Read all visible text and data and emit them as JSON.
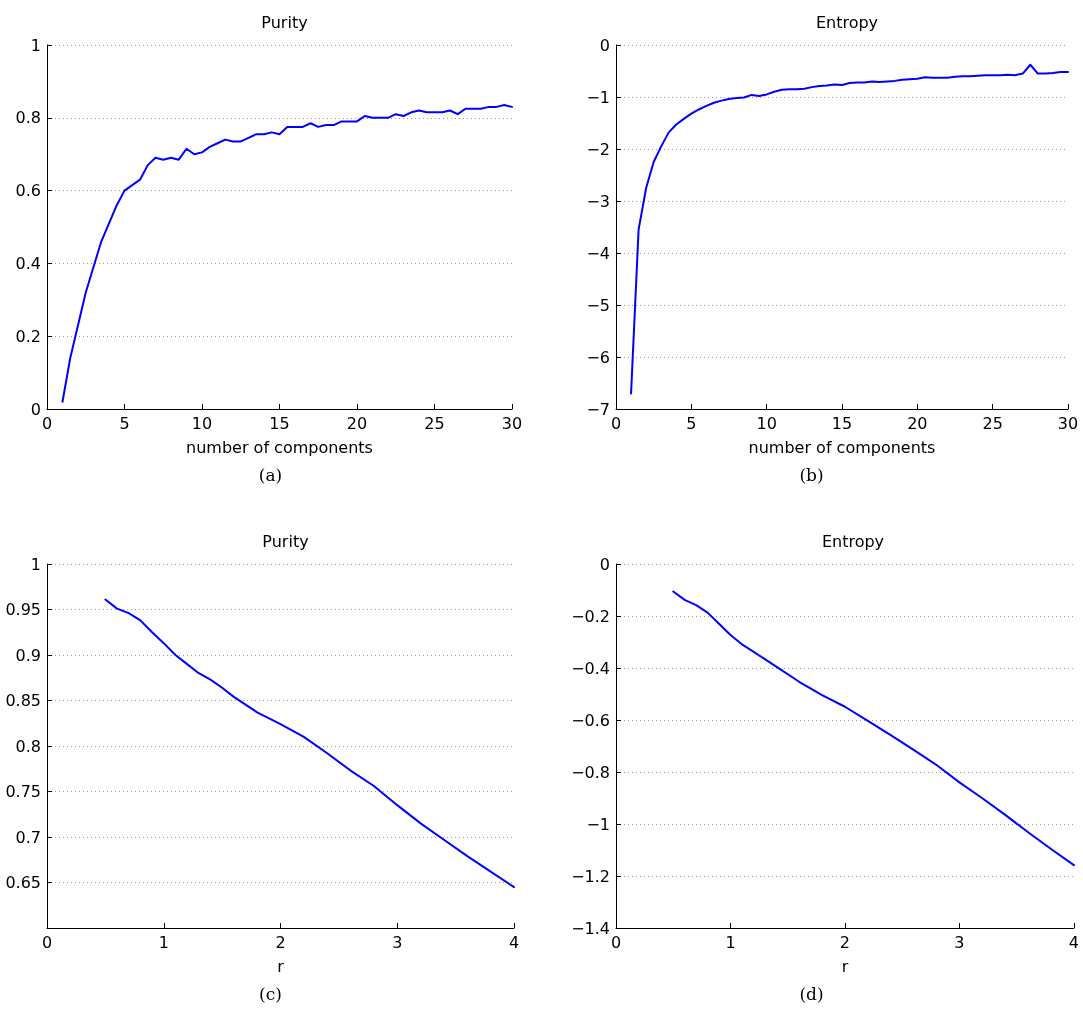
{
  "chart_data": [
    {
      "type": "line",
      "title": "Purity",
      "xlabel": "number of components",
      "annotations": [
        "(a)"
      ],
      "xlim": [
        0,
        30
      ],
      "xticks": [
        0,
        5,
        10,
        15,
        20,
        25,
        30
      ],
      "ylim": [
        0,
        1
      ],
      "yticks": [
        0,
        0.2,
        0.4,
        0.6,
        0.8,
        1
      ],
      "grid": "y",
      "marker": "none",
      "line_style": "solid",
      "x": [
        1,
        1.5,
        2,
        2.5,
        3,
        3.5,
        4,
        4.5,
        5,
        5.5,
        6,
        6.5,
        7,
        7.5,
        8,
        8.5,
        9,
        9.5,
        10,
        10.5,
        11,
        11.5,
        12,
        12.5,
        13,
        13.5,
        14,
        14.5,
        15,
        15.5,
        16,
        16.5,
        17,
        17.5,
        18,
        18.5,
        19,
        19.5,
        20,
        20.5,
        21,
        21.5,
        22,
        22.5,
        23,
        23.5,
        24,
        24.5,
        25,
        25.5,
        26,
        26.5,
        27,
        27.5,
        28,
        28.5,
        29,
        29.5,
        30
      ],
      "series": [
        {
          "color": "#0000ff",
          "values": [
            0.02,
            0.14,
            0.23,
            0.32,
            0.39,
            0.46,
            0.51,
            0.56,
            0.6,
            0.615,
            0.63,
            0.67,
            0.69,
            0.685,
            0.69,
            0.685,
            0.715,
            0.7,
            0.705,
            0.72,
            0.73,
            0.74,
            0.735,
            0.735,
            0.745,
            0.755,
            0.755,
            0.76,
            0.755,
            0.775,
            0.775,
            0.775,
            0.785,
            0.775,
            0.78,
            0.78,
            0.79,
            0.79,
            0.79,
            0.805,
            0.8,
            0.8,
            0.8,
            0.81,
            0.805,
            0.815,
            0.82,
            0.815,
            0.815,
            0.815,
            0.82,
            0.81,
            0.825,
            0.825,
            0.825,
            0.83,
            0.83,
            0.835,
            0.83
          ]
        }
      ]
    },
    {
      "type": "line",
      "title": "Entropy",
      "xlabel": "number of components",
      "annotations": [
        "(b)"
      ],
      "xlim": [
        0,
        30
      ],
      "xticks": [
        0,
        5,
        10,
        15,
        20,
        25,
        30
      ],
      "ylim": [
        -7,
        0
      ],
      "yticks": [
        -7,
        -6,
        -5,
        -4,
        -3,
        -2,
        -1,
        0
      ],
      "grid": "y",
      "marker": "none",
      "line_style": "solid",
      "x": [
        1,
        1.5,
        2,
        2.5,
        3,
        3.5,
        4,
        4.5,
        5,
        5.5,
        6,
        6.5,
        7,
        7.5,
        8,
        8.5,
        9,
        9.5,
        10,
        10.5,
        11,
        11.5,
        12,
        12.5,
        13,
        13.5,
        14,
        14.5,
        15,
        15.5,
        16,
        16.5,
        17,
        17.5,
        18,
        18.5,
        19,
        19.5,
        20,
        20.5,
        21,
        21.5,
        22,
        22.5,
        23,
        23.5,
        24,
        24.5,
        25,
        25.5,
        26,
        26.5,
        27,
        27.5,
        28,
        28.5,
        29,
        29.5,
        30
      ],
      "series": [
        {
          "color": "#0000ff",
          "values": [
            -6.7,
            -3.55,
            -2.75,
            -2.25,
            -1.95,
            -1.68,
            -1.53,
            -1.42,
            -1.32,
            -1.24,
            -1.17,
            -1.11,
            -1.07,
            -1.04,
            -1.02,
            -1.01,
            -0.96,
            -0.98,
            -0.95,
            -0.9,
            -0.86,
            -0.85,
            -0.85,
            -0.84,
            -0.81,
            -0.79,
            -0.78,
            -0.76,
            -0.77,
            -0.73,
            -0.72,
            -0.72,
            -0.7,
            -0.71,
            -0.7,
            -0.69,
            -0.67,
            -0.66,
            -0.65,
            -0.62,
            -0.63,
            -0.63,
            -0.63,
            -0.61,
            -0.6,
            -0.6,
            -0.59,
            -0.58,
            -0.58,
            -0.58,
            -0.57,
            -0.58,
            -0.55,
            -0.38,
            -0.55,
            -0.55,
            -0.54,
            -0.52,
            -0.52
          ]
        }
      ]
    },
    {
      "type": "line",
      "title": "Purity",
      "xlabel": "r",
      "annotations": [
        "(c)"
      ],
      "xlim": [
        0,
        4
      ],
      "xticks": [
        0,
        1,
        2,
        3,
        4
      ],
      "ylim": [
        0.6,
        1
      ],
      "yticks": [
        0.65,
        0.7,
        0.75,
        0.8,
        0.85,
        0.9,
        0.95,
        1
      ],
      "grid": "y",
      "marker": "none",
      "line_style": "solid",
      "x": [
        0.5,
        0.6,
        0.7,
        0.8,
        0.9,
        1,
        1.1,
        1.2,
        1.3,
        1.4,
        1.5,
        1.6,
        1.8,
        2,
        2.2,
        2.4,
        2.6,
        2.8,
        3,
        3.2,
        3.4,
        3.6,
        3.8,
        4
      ],
      "series": [
        {
          "color": "#0000ff",
          "values": [
            0.961,
            0.951,
            0.946,
            0.938,
            0.925,
            0.913,
            0.9,
            0.89,
            0.88,
            0.873,
            0.864,
            0.854,
            0.837,
            0.824,
            0.81,
            0.792,
            0.773,
            0.756,
            0.735,
            0.715,
            0.697,
            0.679,
            0.662,
            0.645
          ]
        }
      ]
    },
    {
      "type": "line",
      "title": "Entropy",
      "xlabel": "r",
      "annotations": [
        "(d)"
      ],
      "xlim": [
        0,
        4
      ],
      "xticks": [
        0,
        1,
        2,
        3,
        4
      ],
      "ylim": [
        -1.4,
        0
      ],
      "yticks": [
        -1.4,
        -1.2,
        -1,
        -0.8,
        -0.6,
        -0.4,
        -0.2,
        0
      ],
      "grid": "y",
      "marker": "none",
      "line_style": "solid",
      "x": [
        0.5,
        0.6,
        0.7,
        0.8,
        0.9,
        1,
        1.1,
        1.2,
        1.4,
        1.6,
        1.8,
        2,
        2.2,
        2.4,
        2.6,
        2.8,
        3,
        3.2,
        3.4,
        3.6,
        3.8,
        4
      ],
      "series": [
        {
          "color": "#0000ff",
          "values": [
            -0.106,
            -0.138,
            -0.158,
            -0.187,
            -0.23,
            -0.273,
            -0.309,
            -0.337,
            -0.395,
            -0.453,
            -0.504,
            -0.549,
            -0.603,
            -0.658,
            -0.715,
            -0.773,
            -0.84,
            -0.901,
            -0.965,
            -1.032,
            -1.096,
            -1.158
          ]
        }
      ]
    }
  ]
}
